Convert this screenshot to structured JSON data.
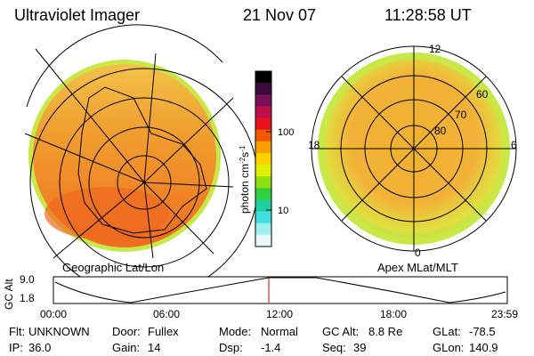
{
  "header": {
    "instrument": "Ultraviolet Imager",
    "date": "21 Nov 07",
    "time": "11:28:58 UT"
  },
  "left_panel": {
    "label": "Geographic Lat/Lon"
  },
  "right_panel": {
    "label": "Apex MLat/MLT",
    "mlt_labels": [
      "12",
      "18",
      "6",
      "0"
    ],
    "lat_labels": [
      "60",
      "70",
      "80"
    ]
  },
  "colorbar": {
    "unit_label": "photon cm",
    "unit_exp1": "-2",
    "unit_mid": "s",
    "unit_exp2": "-1",
    "ticks": [
      "100",
      "10"
    ],
    "colors": [
      "#000000",
      "#3a0a3a",
      "#7a0f5a",
      "#c0104a",
      "#e8101a",
      "#f05a00",
      "#f8a000",
      "#ffd000",
      "#e0f000",
      "#90e010",
      "#30d040",
      "#20d0a0",
      "#40e0e0",
      "#a0f0f0",
      "#e8f8f8"
    ]
  },
  "timeline": {
    "axis_label": "GC Alt",
    "y_ticks": [
      "9.0",
      "1.8"
    ],
    "x_ticks": [
      "00:00",
      "06:00",
      "12:00",
      "18:00",
      "23:59"
    ],
    "marker_color": "#d00000"
  },
  "info": {
    "row1": [
      {
        "key": "Flt:",
        "value": "UNKNOWN"
      },
      {
        "key": "Door:",
        "value": "Fullex"
      },
      {
        "key": "Mode:",
        "value": "Normal"
      },
      {
        "key": "GC Alt:",
        "value": "8.8 Re"
      },
      {
        "key": "GLat:",
        "value": "-78.5"
      }
    ],
    "row2": [
      {
        "key": "IP:",
        "value": "36.0"
      },
      {
        "key": "Gain:",
        "value": "14"
      },
      {
        "key": "Dsp:",
        "value": "-1.4"
      },
      {
        "key": "Seq:",
        "value": "39"
      },
      {
        "key": "GLon:",
        "value": "140.9"
      }
    ]
  }
}
